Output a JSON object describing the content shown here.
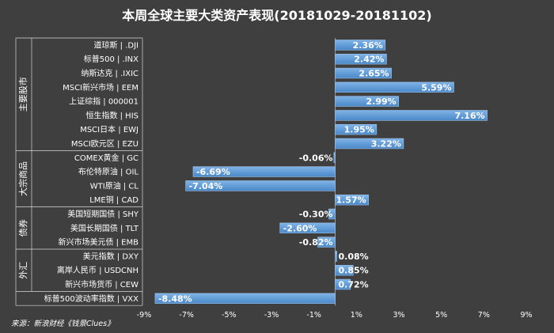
{
  "chart_data": {
    "type": "bar",
    "orientation": "horizontal",
    "title": "本周全球主要大类资产表现(20181029-20181102)",
    "source": "来源：新浪财经《钱景Clues》",
    "xlim": [
      -9,
      9
    ],
    "xticks": [
      -9,
      -7,
      -5,
      -3,
      -1,
      1,
      3,
      5,
      7,
      9
    ],
    "xtick_suffix": "%",
    "grid": true,
    "bar_color": "#5b9bd5",
    "categories": [
      "道琼斯 | .DJI",
      "标普500 | .INX",
      "纳斯达克 | .IXIC",
      "MSCI新兴市场 | EEM",
      "上证综指 | 000001",
      "恒生指数 | HIS",
      "MSCI日本 | EWJ",
      "MSCI欧元区 | EZU",
      "COMEX黄金 | GC",
      "布伦特原油 | OIL",
      "WTI原油 | CL",
      "LME铜 | CAD",
      "美国短期国债 | SHY",
      "美国长期国债 | TLT",
      "新兴市场美元债 | EMB",
      "美元指数 | DXY",
      "离岸人民币 | USDCNH",
      "新兴市场货币 | CEW",
      "标普500波动率指数 | VXX"
    ],
    "values": [
      2.36,
      2.42,
      2.65,
      5.59,
      2.99,
      7.16,
      1.95,
      3.22,
      -0.06,
      -6.69,
      -7.04,
      1.57,
      -0.3,
      -2.6,
      -0.82,
      0.08,
      0.85,
      0.72,
      -8.48
    ],
    "value_labels": [
      "2.36%",
      "2.42%",
      "2.65%",
      "5.59%",
      "2.99%",
      "7.16%",
      "1.95%",
      "3.22%",
      "-0.06%",
      "-6.69%",
      "-7.04%",
      "1.57%",
      "-0.30%",
      "-2.60%",
      "-0.82%",
      "0.08%",
      "0.85%",
      "0.72%",
      "-8.48%"
    ],
    "groups": [
      {
        "label": "主要股市",
        "start": 0,
        "end": 7
      },
      {
        "label": "大宗商品",
        "start": 8,
        "end": 11
      },
      {
        "label": "债券",
        "start": 12,
        "end": 14
      },
      {
        "label": "外汇",
        "start": 15,
        "end": 17
      }
    ]
  }
}
